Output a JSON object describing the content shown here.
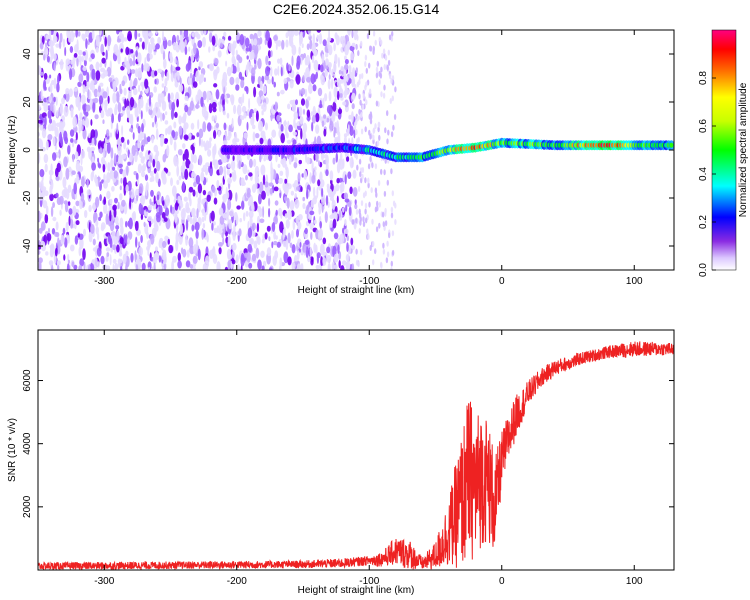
{
  "figure": {
    "title": "C2E6.2024.352.06.15.G14"
  },
  "chart_data": [
    {
      "type": "heatmap",
      "xlabel": "Height of straight line (km)",
      "ylabel": "Frequency (Hz)",
      "xlim": [
        -350,
        130
      ],
      "ylim": [
        -50,
        50
      ],
      "xticks": [
        -300,
        -200,
        -100,
        0,
        100
      ],
      "yticks": [
        -40,
        -20,
        0,
        20,
        40
      ],
      "colorbar": {
        "label": "Normalized spectral amplitude",
        "range": [
          0,
          1
        ],
        "ticks": [
          0.0,
          0.2,
          0.4,
          0.6,
          0.8
        ],
        "colormap": [
          "#ffffff",
          "#7a00ff",
          "#0000ff",
          "#00ffff",
          "#00ff00",
          "#ffff00",
          "#ff0000",
          "#ff00ff"
        ]
      },
      "features": {
        "noise_region_x": [
          -350,
          -110
        ],
        "noise_sparse_x": [
          -110,
          -80
        ],
        "signal_ridge": [
          {
            "x": -210,
            "y": 0,
            "amp": 0.2
          },
          {
            "x": -160,
            "y": 0,
            "amp": 0.25
          },
          {
            "x": -120,
            "y": 1,
            "amp": 0.3
          },
          {
            "x": -100,
            "y": 0,
            "amp": 0.45
          },
          {
            "x": -80,
            "y": -3,
            "amp": 0.5
          },
          {
            "x": -60,
            "y": -3,
            "amp": 0.55
          },
          {
            "x": -40,
            "y": 0,
            "amp": 0.7
          },
          {
            "x": -20,
            "y": 1,
            "amp": 0.85
          },
          {
            "x": 0,
            "y": 3,
            "amp": 0.6
          },
          {
            "x": 40,
            "y": 2,
            "amp": 0.6
          },
          {
            "x": 80,
            "y": 2,
            "amp": 0.9
          },
          {
            "x": 110,
            "y": 2,
            "amp": 0.55
          },
          {
            "x": 130,
            "y": 2,
            "amp": 0.55
          }
        ]
      },
      "grid": false
    },
    {
      "type": "line",
      "xlabel": "Height of straight line (km)",
      "ylabel": "SNR (10 * v/v)",
      "xlim": [
        -350,
        130
      ],
      "ylim": [
        0,
        7600
      ],
      "xticks": [
        -300,
        -200,
        -100,
        0,
        100
      ],
      "yticks": [
        2000,
        4000,
        6000
      ],
      "color": "#ee2222",
      "envelope": {
        "x": [
          -350,
          -250,
          -150,
          -120,
          -100,
          -90,
          -80,
          -70,
          -60,
          -50,
          -40,
          -30,
          -25,
          -20,
          -15,
          -10,
          -5,
          0,
          10,
          20,
          30,
          40,
          60,
          80,
          100,
          130
        ],
        "mid": [
          120,
          150,
          180,
          220,
          300,
          350,
          600,
          500,
          200,
          450,
          1200,
          2200,
          3000,
          2600,
          3000,
          2800,
          2000,
          3500,
          4800,
          5600,
          6100,
          6400,
          6700,
          6900,
          7000,
          7000
        ],
        "amp": [
          120,
          120,
          120,
          150,
          150,
          250,
          450,
          500,
          200,
          450,
          1100,
          2200,
          2600,
          2400,
          2200,
          2000,
          1600,
          900,
          700,
          400,
          300,
          250,
          200,
          200,
          250,
          200
        ]
      },
      "grid": false
    }
  ]
}
